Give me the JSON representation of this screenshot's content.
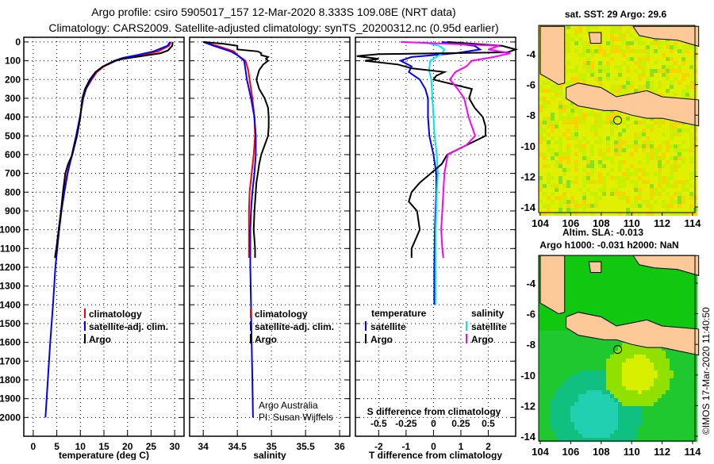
{
  "header": {
    "title_line1": "Argo profile: csiro 5905017_157 12-Mar-2020 8.333S 109.08E (NRT data)",
    "title_line2": "Climatology: CARS2009. Satellite-adjusted climatology: synTS_20200312.nc (0.95d earlier)"
  },
  "colors": {
    "argo": "#000000",
    "climatology": "#ff0000",
    "satellite": "#0000ff",
    "s_satellite": "#00e5ee",
    "s_argo": "#ff00ff",
    "land": "#fdc998"
  },
  "chart_data": [
    {
      "type": "line",
      "id": "temperature",
      "xlabel": "temperature (deg C)",
      "ylabel": "depth",
      "xlim": [
        -2,
        32
      ],
      "ylim": [
        2100,
        -25
      ],
      "xticks": [
        0,
        5,
        10,
        15,
        20,
        25,
        30
      ],
      "yticks": [
        0,
        100,
        200,
        300,
        400,
        500,
        600,
        700,
        800,
        900,
        1000,
        1100,
        1200,
        1300,
        1400,
        1500,
        1600,
        1700,
        1800,
        1900,
        2000
      ],
      "legend": [
        "climatology",
        "satellite-adj. clim.",
        "Argo"
      ],
      "series": [
        {
          "name": "climatology",
          "color": "#ff0000",
          "depth": [
            0,
            20,
            50,
            70,
            85,
            100,
            130,
            160,
            200,
            250,
            300,
            400,
            500,
            600,
            700,
            800,
            900,
            1000,
            1100,
            1150
          ],
          "values": [
            29.2,
            28.8,
            26.5,
            23,
            19.5,
            17.5,
            15,
            13.5,
            12.4,
            11.2,
            10.6,
            9.9,
            9.2,
            8.3,
            7.2,
            6.5,
            5.9,
            5.4,
            5.0,
            4.8
          ]
        },
        {
          "name": "satellite-adj. clim.",
          "color": "#0000ff",
          "depth": [
            0,
            20,
            50,
            70,
            85,
            100,
            130,
            160,
            200,
            250,
            300,
            400,
            500,
            600,
            700,
            800,
            900,
            1000,
            1100,
            1200,
            1400,
            1600,
            1800,
            2000
          ],
          "values": [
            29.0,
            28.5,
            25.5,
            22,
            19,
            17.2,
            14.8,
            13.3,
            12.2,
            11.2,
            10.6,
            9.9,
            9.1,
            8.2,
            7.3,
            6.6,
            6.0,
            5.5,
            5.1,
            4.7,
            4.2,
            3.6,
            3.1,
            2.6
          ]
        },
        {
          "name": "Argo",
          "color": "#000000",
          "depth": [
            0,
            20,
            45,
            60,
            75,
            90,
            100,
            130,
            160,
            200,
            250,
            300,
            400,
            500,
            600,
            650,
            700,
            800,
            900,
            1000,
            1100,
            1150
          ],
          "values": [
            29.6,
            29.5,
            28.6,
            27,
            23,
            19,
            17.5,
            14.8,
            13.2,
            12.0,
            11.0,
            10.4,
            10.0,
            9.3,
            8.3,
            7.4,
            6.8,
            6.3,
            5.9,
            5.4,
            4.9,
            4.6
          ]
        }
      ]
    },
    {
      "type": "line",
      "id": "salinity",
      "xlabel": "salinity",
      "xlim": [
        33.8,
        36.15
      ],
      "ylim": [
        2100,
        -25
      ],
      "xticks": [
        34,
        34.5,
        35,
        35.5,
        36
      ],
      "xticklabels": [
        "34",
        "34.5",
        "35",
        "35.5",
        "36"
      ],
      "legend": [
        "climatology",
        "satellite-adj. clim.",
        "Argo"
      ],
      "annotation": [
        "Argo Australia",
        "PI: Susan Wijffels"
      ],
      "series": [
        {
          "name": "climatology",
          "color": "#ff0000",
          "depth": [
            0,
            20,
            50,
            70,
            100,
            150,
            200,
            300,
            400,
            500,
            600,
            700,
            800,
            900,
            1000,
            1100,
            1150
          ],
          "values": [
            34.0,
            34.2,
            34.45,
            34.5,
            34.62,
            34.66,
            34.68,
            34.72,
            34.75,
            34.76,
            34.74,
            34.71,
            34.68,
            34.67,
            34.67,
            34.67,
            34.67
          ]
        },
        {
          "name": "satellite-adj. clim.",
          "color": "#0000ff",
          "depth": [
            0,
            20,
            50,
            70,
            100,
            150,
            200,
            300,
            400,
            500,
            600,
            700,
            800,
            900,
            1000,
            1200,
            1400,
            1600,
            1800,
            2000
          ],
          "values": [
            34.0,
            34.15,
            34.4,
            34.5,
            34.6,
            34.62,
            34.64,
            34.7,
            34.75,
            34.77,
            34.77,
            34.75,
            34.72,
            34.7,
            34.69,
            34.69,
            34.7,
            34.71,
            34.72,
            34.73
          ]
        },
        {
          "name": "Argo",
          "color": "#000000",
          "depth": [
            0,
            10,
            20,
            40,
            50,
            60,
            70,
            80,
            90,
            100,
            120,
            150,
            200,
            250,
            300,
            350,
            400,
            450,
            500,
            550,
            600,
            650,
            700,
            750,
            800,
            900,
            1000,
            1100,
            1150
          ],
          "values": [
            34.0,
            34.3,
            34.5,
            34.5,
            34.8,
            34.85,
            34.85,
            34.95,
            34.92,
            34.95,
            34.88,
            34.82,
            34.78,
            34.82,
            34.9,
            34.95,
            34.96,
            34.96,
            34.95,
            34.9,
            34.85,
            34.82,
            34.8,
            34.78,
            34.77,
            34.75,
            34.74,
            34.76,
            34.76
          ]
        }
      ]
    },
    {
      "type": "line",
      "id": "differences",
      "xlabel": "T difference from climatology",
      "xlim": [
        -2.85,
        3.0
      ],
      "ylim": [
        2100,
        -25
      ],
      "xticks": [
        -2,
        -1,
        0,
        1,
        2
      ],
      "s_label": "S difference from climatology",
      "s_ticks": [
        -0.5,
        -0.25,
        0,
        0.25,
        0.5
      ],
      "s_ticklabels": [
        "-0.5",
        "-0.25",
        "0",
        "0.25",
        "0.5"
      ],
      "s_scale_note": "S difference axis = T axis / 4",
      "legend_headers": [
        "temperature",
        "salinity"
      ],
      "legend_left": [
        "satellite",
        "Argo"
      ],
      "legend_right": [
        "satellite",
        "Argo"
      ],
      "series": [
        {
          "name": "T satellite",
          "color": "#0000ff",
          "unit": "T",
          "depth": [
            0,
            20,
            40,
            60,
            80,
            100,
            130,
            160,
            200,
            250,
            300,
            400,
            500,
            600,
            700,
            800,
            1000,
            1200,
            1400
          ],
          "values": [
            0.3,
            1.5,
            1.7,
            0.8,
            -0.8,
            -1.2,
            -0.8,
            -0.9,
            -0.5,
            -0.3,
            -0.2,
            -0.2,
            -0.15,
            0.0,
            0.1,
            0.1,
            0.05,
            0.03,
            0.03
          ]
        },
        {
          "name": "S satellite",
          "color": "#00e5ee",
          "unit": "S",
          "depth": [
            0,
            20,
            40,
            60,
            100,
            150,
            200,
            300,
            400,
            500,
            600,
            700,
            800,
            1000,
            1200,
            1400
          ],
          "values": [
            -0.1,
            0.05,
            0.1,
            0.08,
            -0.03,
            -0.04,
            -0.02,
            -0.01,
            0.0,
            0.01,
            0.03,
            0.04,
            0.03,
            0.02,
            0.02,
            0.02
          ]
        },
        {
          "name": "T Argo",
          "color": "#000000",
          "unit": "T",
          "depth": [
            0,
            20,
            40,
            55,
            65,
            75,
            90,
            100,
            120,
            140,
            160,
            180,
            200,
            250,
            300,
            350,
            400,
            450,
            500,
            550,
            600,
            650,
            700,
            750,
            800,
            850,
            900,
            1000,
            1100,
            1150
          ],
          "values": [
            0.5,
            2.5,
            3.0,
            2.7,
            -2.0,
            -2.8,
            -2.0,
            -2.5,
            -1.3,
            -0.8,
            0.4,
            0.1,
            0.0,
            1.4,
            1.3,
            1.5,
            1.8,
            1.9,
            1.9,
            1.2,
            0.5,
            0.3,
            -0.1,
            -0.5,
            -0.8,
            -0.9,
            -0.6,
            -0.5,
            -0.8,
            -0.8
          ]
        },
        {
          "name": "S Argo",
          "color": "#ff00ff",
          "unit": "S",
          "depth": [
            0,
            20,
            40,
            60,
            80,
            100,
            130,
            160,
            200,
            250,
            300,
            400,
            450,
            500,
            550,
            600,
            700,
            800,
            900,
            1000,
            1100,
            1150
          ],
          "values": [
            -0.3,
            0.6,
            0.5,
            0.7,
            0.55,
            0.35,
            0.3,
            0.2,
            0.15,
            0.22,
            0.28,
            0.32,
            0.35,
            0.38,
            0.3,
            0.13,
            0.1,
            0.09,
            0.08,
            0.07,
            0.08,
            0.09
          ]
        }
      ]
    }
  ],
  "maps": [
    {
      "id": "sst-map",
      "title": "sat. SST: 29 Argo: 29.6",
      "lon_ticks": [
        104,
        106,
        108,
        110,
        112,
        114
      ],
      "lat_ticks": [
        -4,
        -6,
        -8,
        -10,
        -12,
        -14
      ],
      "argo_location": {
        "lon": 109.08,
        "lat": -8.333
      }
    },
    {
      "id": "sla-map",
      "title_line1": "Altim. SLA: -0.013",
      "title_line2": "Argo h1000: -0.031 h2000: NaN",
      "lon_ticks": [
        104,
        106,
        108,
        110,
        112,
        114
      ],
      "lat_ticks": [
        -4,
        -6,
        -8,
        -10,
        -12,
        -14
      ],
      "argo_location": {
        "lon": 109.08,
        "lat": -8.333
      }
    }
  ],
  "footer": {
    "credit": "©IMOS 17-Mar-2020 11:40:50"
  }
}
